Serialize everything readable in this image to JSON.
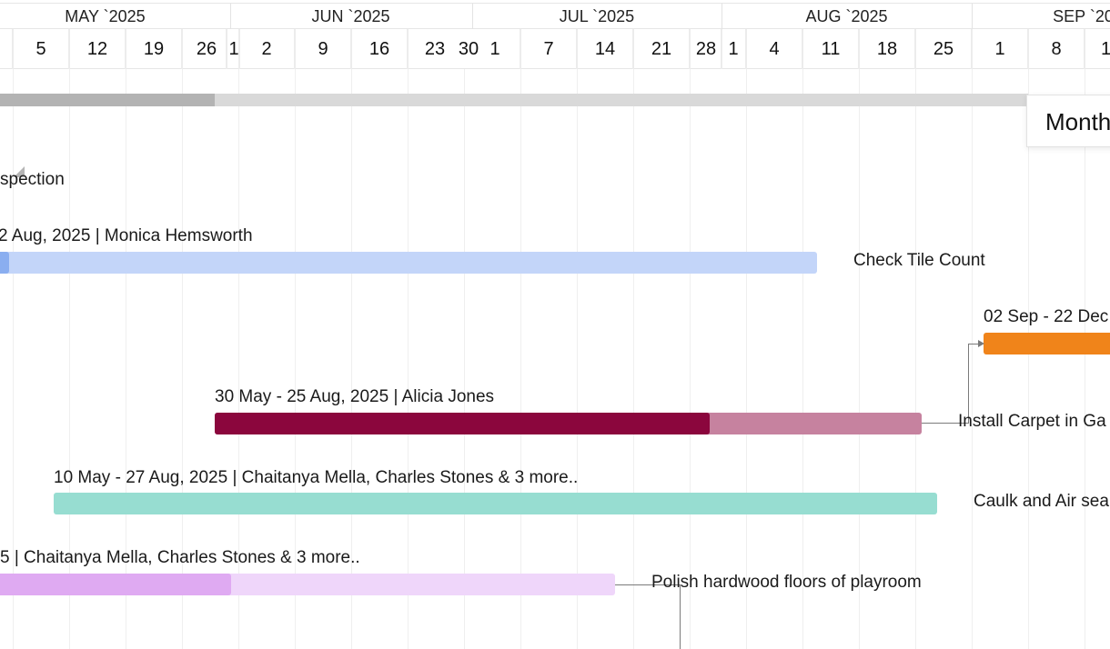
{
  "timeline": {
    "months": [
      "MAY `2025",
      "JUN `2025",
      "JUL `2025",
      "AUG `2025",
      "SEP `2025"
    ],
    "days": [
      "5",
      "12",
      "19",
      "26",
      "1",
      "2",
      "9",
      "16",
      "23",
      "30",
      "1",
      "7",
      "14",
      "21",
      "28",
      "1",
      "4",
      "11",
      "18",
      "25",
      "1",
      "8",
      "1"
    ]
  },
  "zoom": {
    "label": "Month"
  },
  "tasks": [
    {
      "name": "spection",
      "meta": ""
    },
    {
      "name": "Check Tile Count",
      "meta": "2 Aug, 2025 | Monica Hemsworth",
      "color": "#c3d5f9",
      "progress_color": "#8aaef0",
      "progress": 0.01
    },
    {
      "name": "",
      "meta": "02 Sep - 22 Dec",
      "color": "#f0841a",
      "progress": 1.0
    },
    {
      "name": "Install Carpet in Ga",
      "meta": "30 May - 25 Aug, 2025 | Alicia Jones",
      "color": "#c6829f",
      "progress_color": "#8b063d",
      "progress": 0.7
    },
    {
      "name": "Caulk and Air sea",
      "meta": "10 May - 27 Aug, 2025 | Chaitanya Mella, Charles Stones & 3 more..",
      "color": "#97ddd1",
      "progress": 1.0
    },
    {
      "name": "Polish hardwood floors of playroom",
      "meta": "5 | Chaitanya Mella, Charles Stones & 3 more..",
      "color": "#efd6fa",
      "progress_color": "#dfaaf2",
      "progress": 0.37
    }
  ]
}
